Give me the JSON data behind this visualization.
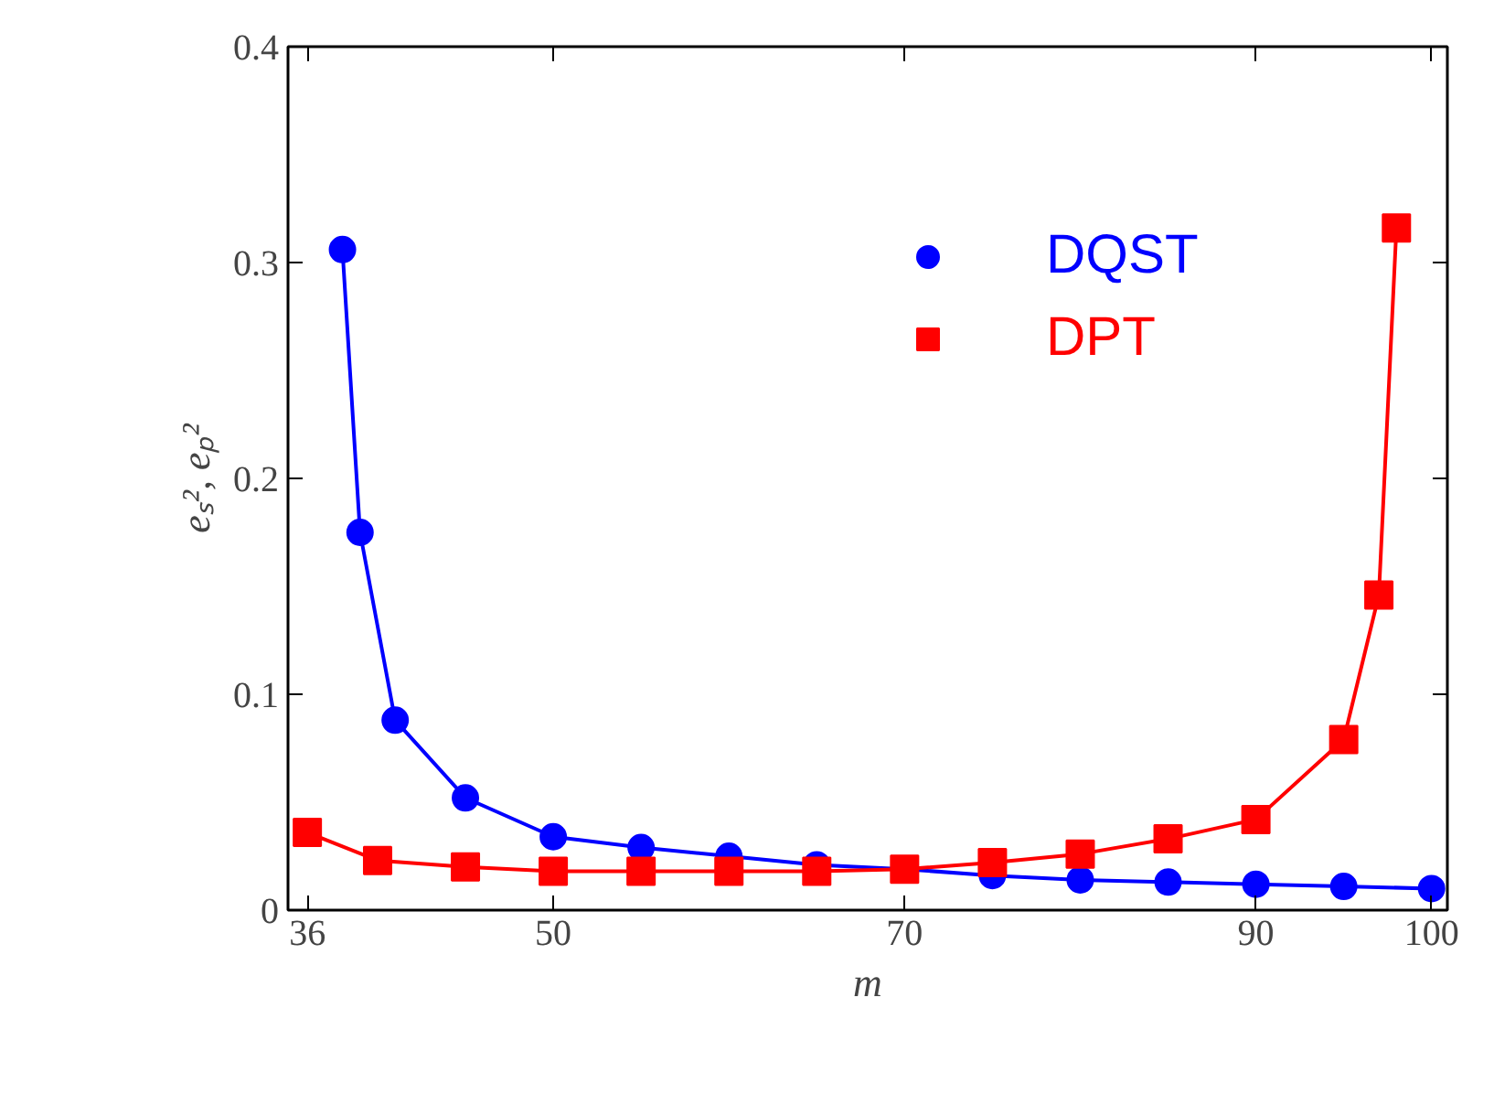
{
  "chart_data": {
    "type": "line",
    "xlabel": "m",
    "ylabel": "eₛ², eₚ²",
    "xlim": [
      34.9,
      100.9
    ],
    "ylim": [
      0,
      0.4
    ],
    "xticks": [
      36,
      50,
      70,
      90,
      100
    ],
    "yticks": [
      0,
      0.1,
      0.2,
      0.3,
      0.4
    ],
    "grid": false,
    "legend": "top right",
    "series": [
      {
        "name": "DQST",
        "color": "#0000ff",
        "marker": "circle",
        "x": [
          38,
          39,
          41,
          45,
          50,
          55,
          60,
          65,
          70,
          75,
          80,
          85,
          90,
          95,
          100
        ],
        "values": [
          0.306,
          0.175,
          0.088,
          0.052,
          0.034,
          0.029,
          0.025,
          0.021,
          0.019,
          0.016,
          0.014,
          0.013,
          0.012,
          0.011,
          0.01
        ]
      },
      {
        "name": "DPT",
        "color": "#ff0000",
        "marker": "square",
        "x": [
          36,
          40,
          45,
          50,
          55,
          60,
          65,
          70,
          75,
          80,
          85,
          90,
          95,
          97,
          98
        ],
        "values": [
          0.036,
          0.023,
          0.02,
          0.018,
          0.018,
          0.018,
          0.018,
          0.019,
          0.022,
          0.026,
          0.033,
          0.042,
          0.079,
          0.146,
          0.316
        ]
      }
    ]
  }
}
